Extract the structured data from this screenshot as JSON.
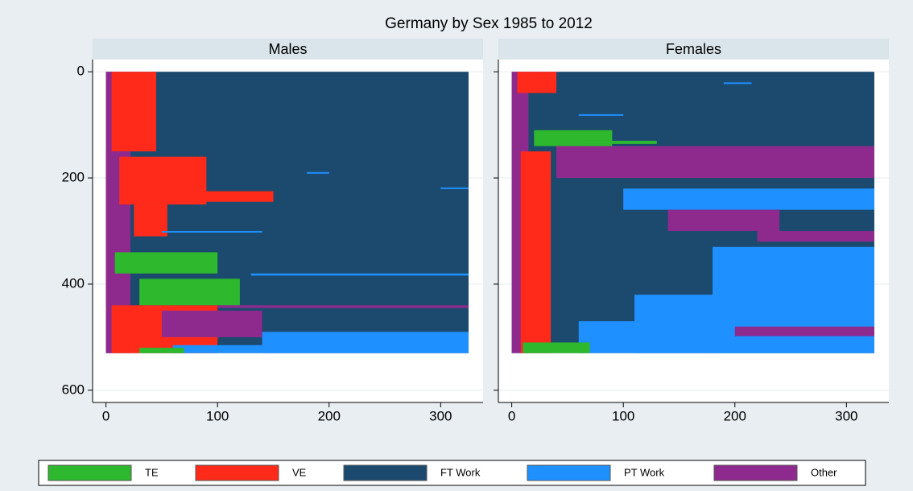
{
  "chart_data": {
    "type": "sequence-index",
    "title": "Germany by Sex 1985 to 2012",
    "xlim": [
      -12,
      338
    ],
    "xticks": [
      0,
      100,
      200,
      300
    ],
    "ylim": [
      -23,
      623
    ],
    "yticks": [
      0,
      200,
      400,
      600
    ],
    "y_reversed": true,
    "grid": true,
    "states": [
      {
        "name": "TE",
        "color": "#2db82d"
      },
      {
        "name": "VE",
        "color": "#ff2a1a"
      },
      {
        "name": "FT Work",
        "color": "#1c4a6e"
      },
      {
        "name": "PT Work",
        "color": "#1e90ff"
      },
      {
        "name": "Other",
        "color": "#8e2a8e"
      }
    ],
    "panels": [
      {
        "title": "Males",
        "segments": [
          {
            "rows": [
              0,
              530
            ],
            "months": [
              0,
              325
            ],
            "state": 2
          },
          {
            "rows": [
              0,
              530
            ],
            "months": [
              0,
              5
            ],
            "state": 4
          },
          {
            "rows": [
              0,
              150
            ],
            "months": [
              5,
              45
            ],
            "state": 1
          },
          {
            "rows": [
              150,
              530
            ],
            "months": [
              0,
              22
            ],
            "state": 4
          },
          {
            "rows": [
              160,
              250
            ],
            "months": [
              12,
              90
            ],
            "state": 1
          },
          {
            "rows": [
              225,
              245
            ],
            "months": [
              20,
              150
            ],
            "state": 1
          },
          {
            "rows": [
              250,
              310
            ],
            "months": [
              25,
              55
            ],
            "state": 1
          },
          {
            "rows": [
              340,
              380
            ],
            "months": [
              8,
              100
            ],
            "state": 0
          },
          {
            "rows": [
              390,
              440
            ],
            "months": [
              30,
              120
            ],
            "state": 0
          },
          {
            "rows": [
              440,
              530
            ],
            "months": [
              5,
              100
            ],
            "state": 1
          },
          {
            "rows": [
              450,
              500
            ],
            "months": [
              50,
              140
            ],
            "state": 4
          },
          {
            "rows": [
              440,
              445
            ],
            "months": [
              100,
              325
            ],
            "state": 4
          },
          {
            "rows": [
              490,
              530
            ],
            "months": [
              140,
              325
            ],
            "state": 3
          },
          {
            "rows": [
              515,
              530
            ],
            "months": [
              60,
              325
            ],
            "state": 3
          },
          {
            "rows": [
              520,
              530
            ],
            "months": [
              30,
              70
            ],
            "state": 0
          },
          {
            "rows": [
              189,
              192
            ],
            "months": [
              180,
              200
            ],
            "state": 3
          },
          {
            "rows": [
              218,
              221
            ],
            "months": [
              300,
              325
            ],
            "state": 3
          },
          {
            "rows": [
              300,
              303
            ],
            "months": [
              50,
              140
            ],
            "state": 3
          },
          {
            "rows": [
              380,
              384
            ],
            "months": [
              130,
              325
            ],
            "state": 3
          }
        ]
      },
      {
        "title": "Females",
        "segments": [
          {
            "rows": [
              0,
              530
            ],
            "months": [
              0,
              325
            ],
            "state": 2
          },
          {
            "rows": [
              0,
              530
            ],
            "months": [
              0,
              15
            ],
            "state": 4
          },
          {
            "rows": [
              0,
              40
            ],
            "months": [
              5,
              40
            ],
            "state": 1
          },
          {
            "rows": [
              150,
              530
            ],
            "months": [
              8,
              35
            ],
            "state": 1
          },
          {
            "rows": [
              110,
              140
            ],
            "months": [
              20,
              90
            ],
            "state": 0
          },
          {
            "rows": [
              130,
              136
            ],
            "months": [
              60,
              130
            ],
            "state": 0
          },
          {
            "rows": [
              140,
              200
            ],
            "months": [
              40,
              325
            ],
            "state": 4
          },
          {
            "rows": [
              220,
              260
            ],
            "months": [
              100,
              325
            ],
            "state": 3
          },
          {
            "rows": [
              260,
              300
            ],
            "months": [
              140,
              240
            ],
            "state": 4
          },
          {
            "rows": [
              300,
              320
            ],
            "months": [
              220,
              325
            ],
            "state": 4
          },
          {
            "rows": [
              330,
              530
            ],
            "months": [
              180,
              325
            ],
            "state": 3
          },
          {
            "rows": [
              420,
              530
            ],
            "months": [
              110,
              325
            ],
            "state": 3
          },
          {
            "rows": [
              470,
              530
            ],
            "months": [
              60,
              325
            ],
            "state": 3
          },
          {
            "rows": [
              480,
              498
            ],
            "months": [
              200,
              325
            ],
            "state": 4
          },
          {
            "rows": [
              510,
              530
            ],
            "months": [
              10,
              70
            ],
            "state": 0
          },
          {
            "rows": [
              20,
              23
            ],
            "months": [
              190,
              215
            ],
            "state": 3
          },
          {
            "rows": [
              80,
              83
            ],
            "months": [
              60,
              100
            ],
            "state": 3
          }
        ]
      }
    ]
  }
}
